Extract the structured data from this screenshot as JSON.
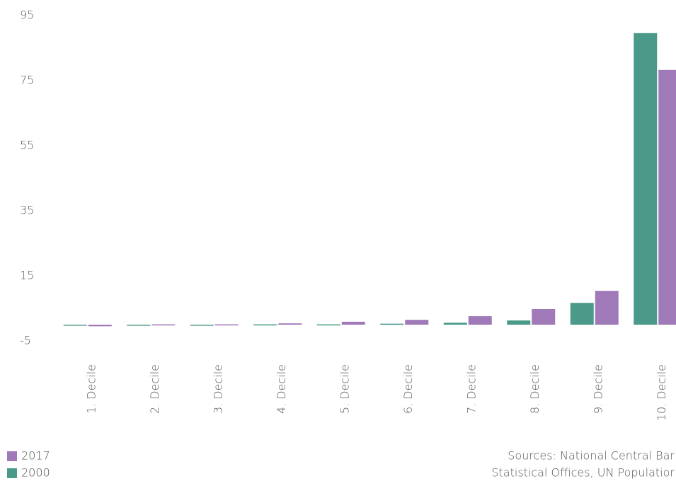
{
  "chart_data": {
    "type": "bar",
    "categories": [
      "1. Decile",
      "2. Decile",
      "3. Decile",
      "4. Decile",
      "5. Decile",
      "6. Decile",
      "7. Decile",
      "8. Decile",
      "9. Decile",
      "10. Decile"
    ],
    "series": [
      {
        "name": "2017",
        "color": "#a07ab8",
        "values": [
          -0.5,
          0.1,
          0.1,
          0.4,
          0.9,
          1.5,
          2.6,
          4.8,
          10.4,
          78.3
        ]
      },
      {
        "name": "2000",
        "color": "#4b9a89",
        "values": [
          -0.3,
          0.0,
          0.0,
          0.1,
          0.1,
          0.3,
          0.6,
          1.3,
          6.7,
          89.6
        ]
      }
    ],
    "ylim": [
      -5,
      95
    ],
    "yticks": [
      -5,
      15,
      35,
      55,
      75,
      95
    ],
    "source": [
      "Sources: National Central Bar",
      "Statistical Offices, UN Populatior"
    ]
  }
}
